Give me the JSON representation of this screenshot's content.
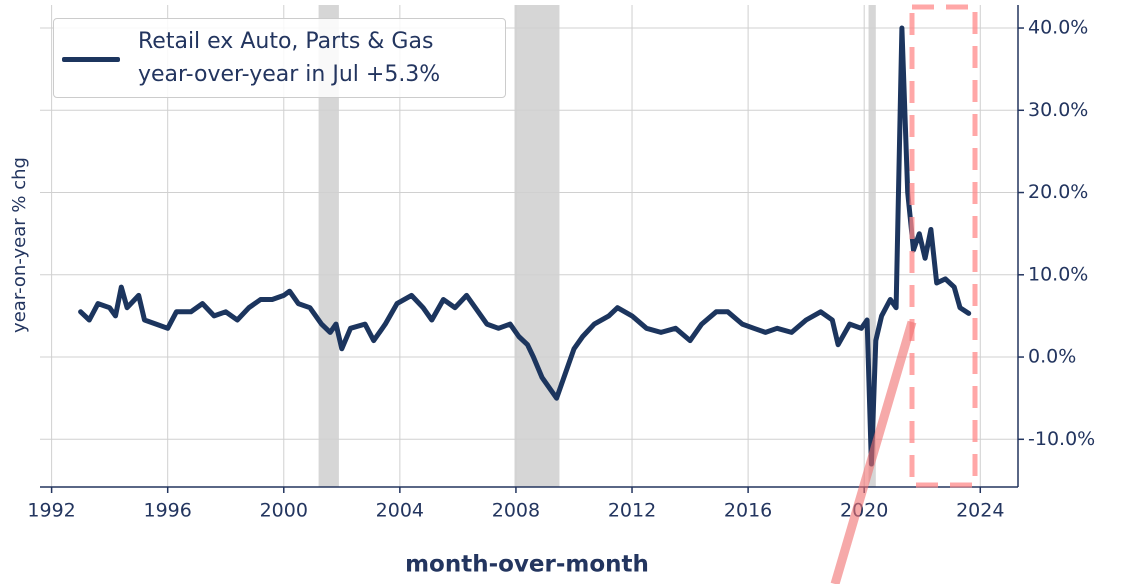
{
  "chart_data": {
    "type": "line",
    "ylabel": "year-on-year % chg",
    "xlabel": "month-over-month",
    "x": [
      1993.0,
      1993.3,
      1993.6,
      1994.0,
      1994.2,
      1994.4,
      1994.6,
      1995.0,
      1995.2,
      1995.6,
      1996.0,
      1996.3,
      1996.8,
      1997.2,
      1997.6,
      1998.0,
      1998.4,
      1998.8,
      1999.2,
      1999.6,
      2000.0,
      2000.2,
      2000.5,
      2000.9,
      2001.3,
      2001.6,
      2001.8,
      2002.0,
      2002.3,
      2002.8,
      2003.1,
      2003.5,
      2003.9,
      2004.4,
      2004.8,
      2005.1,
      2005.5,
      2005.9,
      2006.3,
      2006.6,
      2007.0,
      2007.4,
      2007.8,
      2008.1,
      2008.4,
      2008.6,
      2008.9,
      2009.1,
      2009.4,
      2009.7,
      2010.0,
      2010.3,
      2010.7,
      2011.2,
      2011.5,
      2012.0,
      2012.5,
      2013.0,
      2013.5,
      2014.0,
      2014.4,
      2014.9,
      2015.3,
      2015.8,
      2016.2,
      2016.6,
      2017.0,
      2017.5,
      2018.0,
      2018.5,
      2018.9,
      2019.1,
      2019.5,
      2019.9,
      2020.1,
      2020.25,
      2020.4,
      2020.6,
      2020.9,
      2021.1,
      2021.3,
      2021.5,
      2021.7,
      2021.9,
      2022.1,
      2022.3,
      2022.5,
      2022.8,
      2023.1,
      2023.3,
      2023.6
    ],
    "series": [
      {
        "name": "Retail ex Auto, Parts & Gas\nyear-over-year in Jul +5.3%",
        "color": "#1c355e",
        "values": [
          5.5,
          4.5,
          6.5,
          6,
          5,
          8.5,
          6,
          7.5,
          4.5,
          4,
          3.5,
          5.5,
          5.5,
          6.5,
          5,
          5.5,
          4.5,
          6,
          7,
          7,
          7.5,
          8,
          6.5,
          6,
          4,
          3,
          4,
          1,
          3.5,
          4,
          2,
          4,
          6.5,
          7.5,
          6,
          4.5,
          7,
          6,
          7.5,
          6,
          4,
          3.5,
          4,
          2.5,
          1.5,
          0,
          -2.5,
          -3.5,
          -5,
          -2,
          1,
          2.5,
          4,
          5,
          6,
          5,
          3.5,
          3,
          3.5,
          2,
          4,
          5.5,
          5.5,
          4,
          3.5,
          3,
          3.5,
          3,
          4.5,
          5.5,
          4.5,
          1.5,
          4,
          3.5,
          4.5,
          -13,
          2,
          5,
          7,
          6,
          40,
          20,
          13,
          15,
          12,
          15.5,
          9,
          9.5,
          8.5,
          6,
          5.3
        ]
      }
    ],
    "shaded_regions": [
      [
        2001.2,
        2001.9
      ],
      [
        2007.95,
        2009.5
      ],
      [
        2020.15,
        2020.4
      ]
    ],
    "shade_color": "#d6d6d6",
    "xlim": [
      1991.6,
      2025.3
    ],
    "xticks": [
      1992,
      1996,
      2000,
      2004,
      2008,
      2012,
      2016,
      2020,
      2024
    ],
    "ylim": [
      -15.8,
      42.8
    ],
    "yticks": [
      {
        "value": -10,
        "label": "-10.0%"
      },
      {
        "value": 0,
        "label": "0.0%"
      },
      {
        "value": 10,
        "label": "10.0%"
      },
      {
        "value": 20,
        "label": "20.0%"
      },
      {
        "value": 30,
        "label": "30.0%"
      },
      {
        "value": 40,
        "label": "40.0%"
      }
    ],
    "grid": true,
    "legend": "upper left"
  }
}
